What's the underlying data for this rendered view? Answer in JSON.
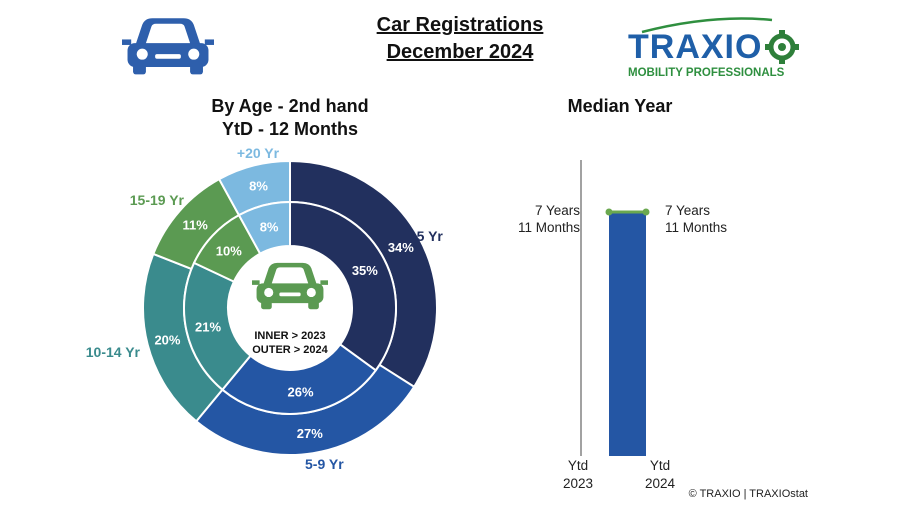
{
  "header": {
    "title_line1": "Car Registrations",
    "title_line2": "December 2024",
    "logo": {
      "brand": "TRAXIO",
      "tagline": "MOBILITY PROFESSIONALS"
    }
  },
  "left_panel": {
    "title_line1": "By Age - 2nd hand",
    "title_line2": "YtD - 12 Months"
  },
  "right_panel": {
    "title": "Median Year"
  },
  "copyright": "© TRAXIO | TRAXIOstat",
  "colors": {
    "navy": "#22305e",
    "blue": "#2456a4",
    "teal": "#3a8b8d",
    "green": "#5b9a52",
    "light_blue": "#7cb9e0",
    "car_icon_blue": "#2e5fac",
    "car_icon_green": "#5b9a52"
  },
  "chart_data": [
    {
      "type": "pie",
      "title": "By Age - 2nd hand YtD - 12 Months",
      "center_label_line1": "INNER > 2023",
      "center_label_line2": "OUTER > 2024",
      "categories": [
        "-5 Yr",
        "5-9 Yr",
        "10-14 Yr",
        "15-19 Yr",
        "+20 Yr"
      ],
      "series": [
        {
          "name": "2023",
          "ring": "inner",
          "values": [
            35,
            26,
            21,
            10,
            8
          ]
        },
        {
          "name": "2024",
          "ring": "outer",
          "values": [
            34,
            27,
            20,
            11,
            8
          ]
        }
      ],
      "colors": [
        "#22305e",
        "#2456a4",
        "#3a8b8d",
        "#5b9a52",
        "#7cb9e0"
      ],
      "label_colors": [
        "#22305e",
        "#2456a4",
        "#3a8b8d",
        "#5b9a52",
        "#7cb9e0"
      ]
    },
    {
      "type": "bar",
      "title": "Median Year",
      "categories": [
        "Ytd 2023",
        "Ytd 2024"
      ],
      "category_lines": [
        [
          "Ytd",
          "2023"
        ],
        [
          "Ytd",
          "2024"
        ]
      ],
      "values": [
        7.917,
        7.917
      ],
      "value_labels": [
        [
          "7 Years",
          "11 Months"
        ],
        [
          "7 Years",
          "11 Months"
        ]
      ],
      "bar_color": "#2456a4",
      "line_color": "#6aa84f"
    }
  ]
}
